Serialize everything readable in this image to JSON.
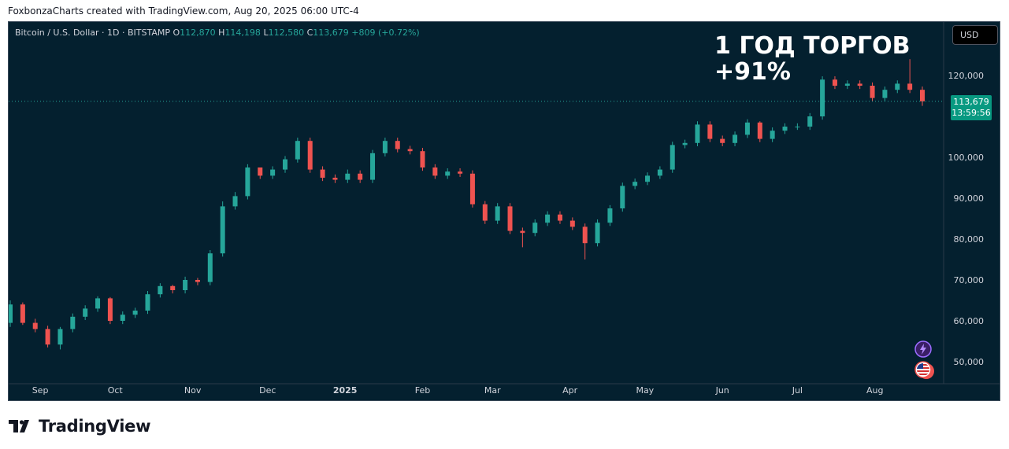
{
  "credit": "FoxbonzaCharts created with TradingView.com, Aug 20, 2025 06:00 UTC-4",
  "legend": {
    "symbol": "Bitcoin / U.S. Dollar · 1D · BITSTAMP",
    "open_label": "O",
    "open": "112,870",
    "high_label": "H",
    "high": "114,198",
    "low_label": "L",
    "low": "112,580",
    "close_label": "C",
    "close": "113,679",
    "change": "+809 (+0.72%)"
  },
  "headline": {
    "line1": "1 ГОД ТОРГОВ",
    "line2": "+91%"
  },
  "currency_button": "USD",
  "last_price": {
    "price": "113,679",
    "countdown": "13:59:56"
  },
  "brand": {
    "name": "TradingView",
    "icon": "tradingview-logo-icon"
  },
  "icons": {
    "bolt": "lightning-bolt-icon",
    "flag": "us-flag-icon"
  },
  "colors": {
    "background": "#04202f",
    "up": "#26a69a",
    "down": "#ef5350",
    "accent": "#089981"
  },
  "chart_data": {
    "type": "candlestick",
    "title": "",
    "ylim": [
      45000,
      128000
    ],
    "y_ticks": [
      "50,000",
      "60,000",
      "70,000",
      "80,000",
      "90,000",
      "100,000",
      "120,000"
    ],
    "x_ticks": [
      "Sep",
      "Oct",
      "Nov",
      "Dec",
      "2025",
      "Feb",
      "Mar",
      "Apr",
      "May",
      "Jun",
      "Jul",
      "Aug"
    ],
    "grid": false,
    "price_line": 113679,
    "x": [
      "2024-08-20",
      "2024-08-25",
      "2024-08-30",
      "2024-09-04",
      "2024-09-09",
      "2024-09-14",
      "2024-09-19",
      "2024-09-24",
      "2024-09-29",
      "2024-10-04",
      "2024-10-09",
      "2024-10-14",
      "2024-10-19",
      "2024-10-24",
      "2024-10-29",
      "2024-11-03",
      "2024-11-08",
      "2024-11-13",
      "2024-11-18",
      "2024-11-23",
      "2024-11-28",
      "2024-12-03",
      "2024-12-08",
      "2024-12-13",
      "2024-12-18",
      "2024-12-23",
      "2024-12-28",
      "2025-01-02",
      "2025-01-07",
      "2025-01-12",
      "2025-01-17",
      "2025-01-22",
      "2025-01-27",
      "2025-02-01",
      "2025-02-06",
      "2025-02-11",
      "2025-02-16",
      "2025-02-21",
      "2025-02-26",
      "2025-03-03",
      "2025-03-08",
      "2025-03-13",
      "2025-03-18",
      "2025-03-23",
      "2025-03-28",
      "2025-04-02",
      "2025-04-07",
      "2025-04-12",
      "2025-04-17",
      "2025-04-22",
      "2025-04-27",
      "2025-05-02",
      "2025-05-07",
      "2025-05-12",
      "2025-05-17",
      "2025-05-22",
      "2025-05-27",
      "2025-06-01",
      "2025-06-06",
      "2025-06-11",
      "2025-06-16",
      "2025-06-21",
      "2025-06-26",
      "2025-07-01",
      "2025-07-06",
      "2025-07-11",
      "2025-07-16",
      "2025-07-21",
      "2025-07-26",
      "2025-07-31",
      "2025-08-05",
      "2025-08-10",
      "2025-08-15",
      "2025-08-20"
    ],
    "open": [
      59500,
      64000,
      59500,
      58000,
      54200,
      58000,
      61000,
      63000,
      65500,
      60000,
      61500,
      62500,
      66500,
      68500,
      67500,
      70000,
      69500,
      76500,
      88000,
      90500,
      97500,
      95500,
      97000,
      99500,
      104000,
      97000,
      95000,
      94500,
      96000,
      94500,
      101000,
      104000,
      102000,
      101500,
      97500,
      95500,
      96500,
      96000,
      88500,
      84500,
      88000,
      82000,
      81500,
      84000,
      86000,
      84500,
      83000,
      79000,
      84000,
      87500,
      93000,
      94000,
      95500,
      97000,
      103000,
      103500,
      108000,
      104500,
      103500,
      105500,
      108500,
      104500,
      106500,
      107500,
      107500,
      110000,
      119000,
      117500,
      118000,
      117500,
      114500,
      116500,
      118000,
      116500
    ],
    "close": [
      64000,
      59500,
      58000,
      54200,
      58000,
      61000,
      63000,
      65500,
      60000,
      61500,
      62500,
      66500,
      68500,
      67500,
      70000,
      69500,
      76500,
      88000,
      90500,
      97500,
      95500,
      97000,
      99500,
      104000,
      97000,
      95000,
      94500,
      96000,
      94500,
      101000,
      104000,
      102000,
      101500,
      97500,
      95500,
      96500,
      96000,
      88500,
      84500,
      88000,
      82000,
      81500,
      84000,
      86000,
      84500,
      83000,
      79000,
      84000,
      87500,
      93000,
      94000,
      95500,
      97000,
      103000,
      103500,
      108000,
      104500,
      103500,
      105500,
      108500,
      104500,
      106500,
      107500,
      107500,
      110000,
      119000,
      117500,
      118000,
      117500,
      114500,
      116500,
      118000,
      116500,
      113679
    ],
    "high": [
      65000,
      64500,
      60500,
      58800,
      58500,
      61800,
      63800,
      66000,
      65800,
      62300,
      63200,
      67300,
      69200,
      68800,
      70800,
      70500,
      77300,
      89200,
      91500,
      98300,
      96800,
      97800,
      100300,
      104800,
      104800,
      97800,
      95800,
      97000,
      96800,
      101800,
      104800,
      104800,
      102800,
      102300,
      98300,
      97300,
      97300,
      96800,
      89300,
      88800,
      88800,
      82800,
      84800,
      86800,
      86800,
      85300,
      83800,
      84800,
      88300,
      93800,
      94800,
      96300,
      97800,
      103800,
      104300,
      108800,
      108800,
      105300,
      106300,
      109300,
      108800,
      107300,
      108300,
      108300,
      110800,
      119800,
      119800,
      118800,
      118800,
      118300,
      117300,
      118800,
      124000,
      117300
    ],
    "low": [
      58500,
      59000,
      57200,
      53500,
      53000,
      57200,
      60200,
      62200,
      59200,
      59200,
      60700,
      61700,
      65700,
      66700,
      66700,
      68700,
      68700,
      75700,
      87200,
      89700,
      94700,
      94700,
      96200,
      98700,
      96200,
      94200,
      93700,
      93700,
      93700,
      93700,
      100200,
      101200,
      100700,
      96700,
      94700,
      94700,
      95200,
      87700,
      83700,
      83700,
      81200,
      78000,
      80700,
      83200,
      83700,
      82200,
      75000,
      78200,
      83200,
      86700,
      92200,
      93200,
      94700,
      96200,
      102200,
      102700,
      103700,
      102700,
      102700,
      104700,
      103700,
      103700,
      105700,
      106700,
      106700,
      109200,
      116700,
      116700,
      116700,
      113700,
      113700,
      115700,
      115700,
      112580
    ]
  }
}
